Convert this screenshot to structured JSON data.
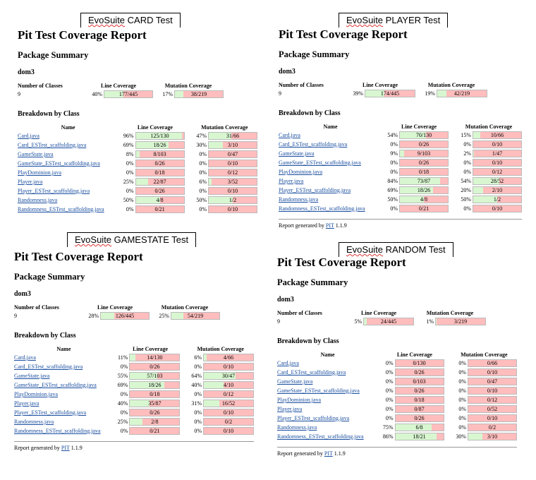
{
  "reports": [
    {
      "label": "CARD Test",
      "title": "Pit Test Coverage Report",
      "package_summary": "Package Summary",
      "package": "dom3",
      "summary_headers": {
        "classes": "Number of Classes",
        "line": "Line Coverage",
        "mutation": "Mutation Coverage"
      },
      "summary": {
        "classes": "9",
        "line_pct": "40%",
        "line_text": "177/445",
        "line_frac": 0.4,
        "mut_pct": "17%",
        "mut_text": "38/219",
        "mut_frac": 0.17
      },
      "breakdown_title": "Breakdown by Class",
      "table_headers": {
        "name": "Name",
        "line": "Line Coverage",
        "mutation": "Mutation Coverage"
      },
      "rows": [
        {
          "name": "Card.java",
          "lp": "96%",
          "lt": "125/130",
          "lf": 0.96,
          "mp": "47%",
          "mt": "31/66",
          "mf": 0.47
        },
        {
          "name": "Card_ESTest_scaffolding.java",
          "lp": "69%",
          "lt": "18/26",
          "lf": 0.69,
          "mp": "30%",
          "mt": "3/10",
          "mf": 0.3
        },
        {
          "name": "GameState.java",
          "lp": "8%",
          "lt": "8/103",
          "lf": 0.08,
          "mp": "0%",
          "mt": "0/47",
          "mf": 0
        },
        {
          "name": "GameState_ESTest_scaffolding.java",
          "lp": "0%",
          "lt": "0/26",
          "lf": 0,
          "mp": "0%",
          "mt": "0/10",
          "mf": 0
        },
        {
          "name": "PlayDominion.java",
          "lp": "0%",
          "lt": "0/18",
          "lf": 0,
          "mp": "0%",
          "mt": "0/12",
          "mf": 0
        },
        {
          "name": "Player.java",
          "lp": "25%",
          "lt": "22/87",
          "lf": 0.25,
          "mp": "6%",
          "mt": "3/52",
          "mf": 0.06
        },
        {
          "name": "Player_ESTest_scaffolding.java",
          "lp": "0%",
          "lt": "0/26",
          "lf": 0,
          "mp": "0%",
          "mt": "0/10",
          "mf": 0
        },
        {
          "name": "Randomness.java",
          "lp": "50%",
          "lt": "4/8",
          "lf": 0.5,
          "mp": "50%",
          "mt": "1/2",
          "mf": 0.5
        },
        {
          "name": "Randomness_ESTest_scaffolding.java",
          "lp": "0%",
          "lt": "0/21",
          "lf": 0,
          "mp": "0%",
          "mt": "0/10",
          "mf": 0
        }
      ],
      "footer": null
    },
    {
      "label": "PLAYER Test",
      "title": "Pit Test Coverage Report",
      "package_summary": "Package Summary",
      "package": "dom3",
      "summary_headers": {
        "classes": "Number of Classes",
        "line": "Line Coverage",
        "mutation": "Mutation Coverage"
      },
      "summary": {
        "classes": "9",
        "line_pct": "39%",
        "line_text": "174/445",
        "line_frac": 0.39,
        "mut_pct": "19%",
        "mut_text": "42/219",
        "mut_frac": 0.19
      },
      "breakdown_title": "Breakdown by Class",
      "table_headers": {
        "name": "Name",
        "line": "Line Coverage",
        "mutation": "Mutation Coverage"
      },
      "rows": [
        {
          "name": "Card.java",
          "lp": "54%",
          "lt": "70/130",
          "lf": 0.54,
          "mp": "15%",
          "mt": "10/66",
          "mf": 0.15
        },
        {
          "name": "Card_ESTest_scaffolding.java",
          "lp": "0%",
          "lt": "0/26",
          "lf": 0,
          "mp": "0%",
          "mt": "0/10",
          "mf": 0
        },
        {
          "name": "GameState.java",
          "lp": "9%",
          "lt": "9/103",
          "lf": 0.09,
          "mp": "2%",
          "mt": "1/47",
          "mf": 0.02
        },
        {
          "name": "GameState_ESTest_scaffolding.java",
          "lp": "0%",
          "lt": "0/26",
          "lf": 0,
          "mp": "0%",
          "mt": "0/10",
          "mf": 0
        },
        {
          "name": "PlayDominion.java",
          "lp": "0%",
          "lt": "0/18",
          "lf": 0,
          "mp": "0%",
          "mt": "0/12",
          "mf": 0
        },
        {
          "name": "Player.java",
          "lp": "84%",
          "lt": "73/87",
          "lf": 0.84,
          "mp": "54%",
          "mt": "28/52",
          "mf": 0.54
        },
        {
          "name": "Player_ESTest_scaffolding.java",
          "lp": "69%",
          "lt": "18/26",
          "lf": 0.69,
          "mp": "20%",
          "mt": "2/10",
          "mf": 0.2
        },
        {
          "name": "Randomness.java",
          "lp": "50%",
          "lt": "4/8",
          "lf": 0.5,
          "mp": "50%",
          "mt": "1/2",
          "mf": 0.5
        },
        {
          "name": "Randomness_ESTest_scaffolding.java",
          "lp": "0%",
          "lt": "0/21",
          "lf": 0,
          "mp": "0%",
          "mt": "0/10",
          "mf": 0
        }
      ],
      "footer": {
        "prefix": "Report generated by",
        "link": "PIT",
        "version": "1.1.9"
      }
    },
    {
      "label": "GAMESTATE Test",
      "title": "Pit Test Coverage Report",
      "package_summary": "Package Summary",
      "package": "dom3",
      "summary_headers": {
        "classes": "Number of Classes",
        "line": "Line Coverage",
        "mutation": "Mutation Coverage"
      },
      "summary": {
        "classes": "9",
        "line_pct": "28%",
        "line_text": "126/445",
        "line_frac": 0.28,
        "mut_pct": "25%",
        "mut_text": "54/219",
        "mut_frac": 0.25
      },
      "breakdown_title": "Breakdown by Class",
      "table_headers": {
        "name": "Name",
        "line": "Line Coverage",
        "mutation": "Mutation Coverage"
      },
      "rows": [
        {
          "name": "Card.java",
          "lp": "11%",
          "lt": "14/130",
          "lf": 0.11,
          "mp": "6%",
          "mt": "4/66",
          "mf": 0.06
        },
        {
          "name": "Card_ESTest_scaffolding.java",
          "lp": "0%",
          "lt": "0/26",
          "lf": 0,
          "mp": "0%",
          "mt": "0/10",
          "mf": 0
        },
        {
          "name": "GameState.java",
          "lp": "55%",
          "lt": "57/103",
          "lf": 0.55,
          "mp": "64%",
          "mt": "30/47",
          "mf": 0.64
        },
        {
          "name": "GameState_ESTest_scaffolding.java",
          "lp": "69%",
          "lt": "18/26",
          "lf": 0.69,
          "mp": "40%",
          "mt": "4/10",
          "mf": 0.4
        },
        {
          "name": "PlayDominion.java",
          "lp": "0%",
          "lt": "0/18",
          "lf": 0,
          "mp": "0%",
          "mt": "0/12",
          "mf": 0
        },
        {
          "name": "Player.java",
          "lp": "40%",
          "lt": "35/87",
          "lf": 0.4,
          "mp": "31%",
          "mt": "16/52",
          "mf": 0.31
        },
        {
          "name": "Player_ESTest_scaffolding.java",
          "lp": "0%",
          "lt": "0/26",
          "lf": 0,
          "mp": "0%",
          "mt": "0/10",
          "mf": 0
        },
        {
          "name": "Randomness.java",
          "lp": "25%",
          "lt": "2/8",
          "lf": 0.25,
          "mp": "0%",
          "mt": "0/2",
          "mf": 0
        },
        {
          "name": "Randomness_ESTest_scaffolding.java",
          "lp": "0%",
          "lt": "0/21",
          "lf": 0,
          "mp": "0%",
          "mt": "0/10",
          "mf": 0
        }
      ],
      "footer": {
        "prefix": "Report generated by",
        "link": "PIT",
        "version": "1.1.9"
      }
    },
    {
      "label": "RANDOM Test",
      "title": "Pit Test Coverage Report",
      "package_summary": "Package Summary",
      "package": "dom3",
      "summary_headers": {
        "classes": "Number of Classes",
        "line": "Line Coverage",
        "mutation": "Mutation Coverage"
      },
      "summary": {
        "classes": "9",
        "line_pct": "5%",
        "line_text": "24/445",
        "line_frac": 0.05,
        "mut_pct": "1%",
        "mut_text": "3/219",
        "mut_frac": 0.01
      },
      "breakdown_title": "Breakdown by Class",
      "table_headers": {
        "name": "Name",
        "line": "Line Coverage",
        "mutation": "Mutation Coverage"
      },
      "rows": [
        {
          "name": "Card.java",
          "lp": "0%",
          "lt": "0/130",
          "lf": 0,
          "mp": "0%",
          "mt": "0/66",
          "mf": 0
        },
        {
          "name": "Card_ESTest_scaffolding.java",
          "lp": "0%",
          "lt": "0/26",
          "lf": 0,
          "mp": "0%",
          "mt": "0/10",
          "mf": 0
        },
        {
          "name": "GameState.java",
          "lp": "0%",
          "lt": "0/103",
          "lf": 0,
          "mp": "0%",
          "mt": "0/47",
          "mf": 0
        },
        {
          "name": "GameState_ESTest_scaffolding.java",
          "lp": "0%",
          "lt": "0/26",
          "lf": 0,
          "mp": "0%",
          "mt": "0/10",
          "mf": 0
        },
        {
          "name": "PlayDominion.java",
          "lp": "0%",
          "lt": "0/18",
          "lf": 0,
          "mp": "0%",
          "mt": "0/12",
          "mf": 0
        },
        {
          "name": "Player.java",
          "lp": "0%",
          "lt": "0/87",
          "lf": 0,
          "mp": "0%",
          "mt": "0/52",
          "mf": 0
        },
        {
          "name": "Player_ESTest_scaffolding.java",
          "lp": "0%",
          "lt": "0/26",
          "lf": 0,
          "mp": "0%",
          "mt": "0/10",
          "mf": 0
        },
        {
          "name": "Randomness.java",
          "lp": "75%",
          "lt": "6/8",
          "lf": 0.75,
          "mp": "0%",
          "mt": "0/2",
          "mf": 0
        },
        {
          "name": "Randomness_ESTest_scaffolding.java",
          "lp": "86%",
          "lt": "18/21",
          "lf": 0.86,
          "mp": "30%",
          "mt": "3/10",
          "mf": 0.3
        }
      ],
      "footer": {
        "prefix": "Report generated by",
        "link": "PIT",
        "version": "1.1.9"
      }
    }
  ],
  "colors": {
    "covered": "#d8f7d0",
    "uncovered": "#ffbdbd",
    "link": "#1a4ea0"
  },
  "label_prefix": "EvoSuite"
}
